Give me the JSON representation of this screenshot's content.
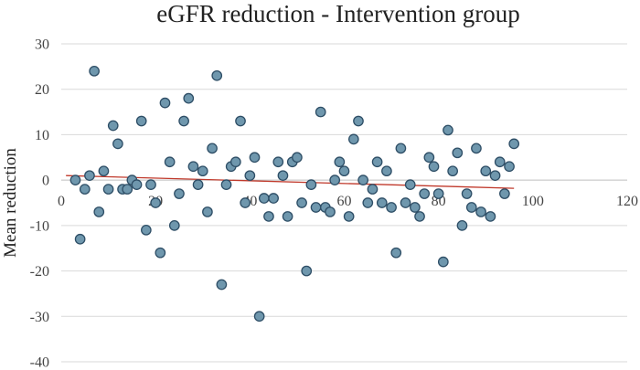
{
  "chart_data": {
    "type": "scatter",
    "title": "eGFR reduction - Intervention group",
    "xlabel": "",
    "ylabel": "Mean reduction",
    "xlim": [
      0,
      120
    ],
    "ylim": [
      -40,
      30
    ],
    "x_ticks": [
      0,
      20,
      40,
      60,
      80,
      100,
      120
    ],
    "y_ticks": [
      30,
      20,
      10,
      0,
      -10,
      -20,
      -30,
      -40
    ],
    "grid": "horizontal",
    "legend": "none",
    "marker_color": "#6f97ad",
    "marker_edge_color": "#2e4e66",
    "trendline_color": "#c0392b",
    "trendline": {
      "type": "linear",
      "x": [
        1,
        96
      ],
      "y": [
        1,
        -1.8
      ]
    },
    "series": [
      {
        "x": [
          3,
          4,
          5,
          6,
          7,
          8,
          9,
          10,
          11,
          12,
          13,
          14,
          15,
          16,
          17,
          18,
          19,
          20,
          21,
          22,
          23,
          24,
          25,
          26,
          27,
          28,
          29,
          30,
          31,
          32,
          33,
          34,
          35,
          36,
          37,
          38,
          39,
          40,
          41,
          42,
          43,
          44,
          45,
          46,
          47,
          48,
          49,
          50,
          51,
          52,
          53,
          54,
          55,
          56,
          57,
          58,
          59,
          60,
          61,
          62,
          63,
          64,
          65,
          66,
          67,
          68,
          69,
          70,
          71,
          72,
          73,
          74,
          75,
          76,
          77,
          78,
          79,
          80,
          81,
          82,
          83,
          84,
          85,
          86,
          87,
          88,
          89,
          90,
          91,
          92,
          93,
          94,
          95,
          96
        ],
        "y": [
          0,
          -13,
          -2,
          1,
          24,
          -7,
          2,
          -2,
          12,
          8,
          -2,
          -2,
          0,
          -1,
          13,
          -11,
          -1,
          -5,
          -16,
          17,
          4,
          -10,
          -3,
          13,
          18,
          3,
          -1,
          2,
          -7,
          7,
          23,
          -23,
          -1,
          3,
          4,
          13,
          -5,
          1,
          5,
          -30,
          -4,
          -8,
          -4,
          4,
          1,
          -8,
          4,
          5,
          -5,
          -20,
          -1,
          -6,
          15,
          -6,
          -7,
          0,
          4,
          2,
          -8,
          9,
          13,
          0,
          -5,
          -2,
          4,
          -5,
          2,
          -6,
          -16,
          7,
          -5,
          -1,
          -6,
          -8,
          -3,
          5,
          3,
          -3,
          -18,
          11,
          2,
          6,
          -10,
          -3,
          -6,
          7,
          -7,
          2,
          -8,
          1,
          4,
          -3,
          3,
          8
        ]
      }
    ]
  }
}
